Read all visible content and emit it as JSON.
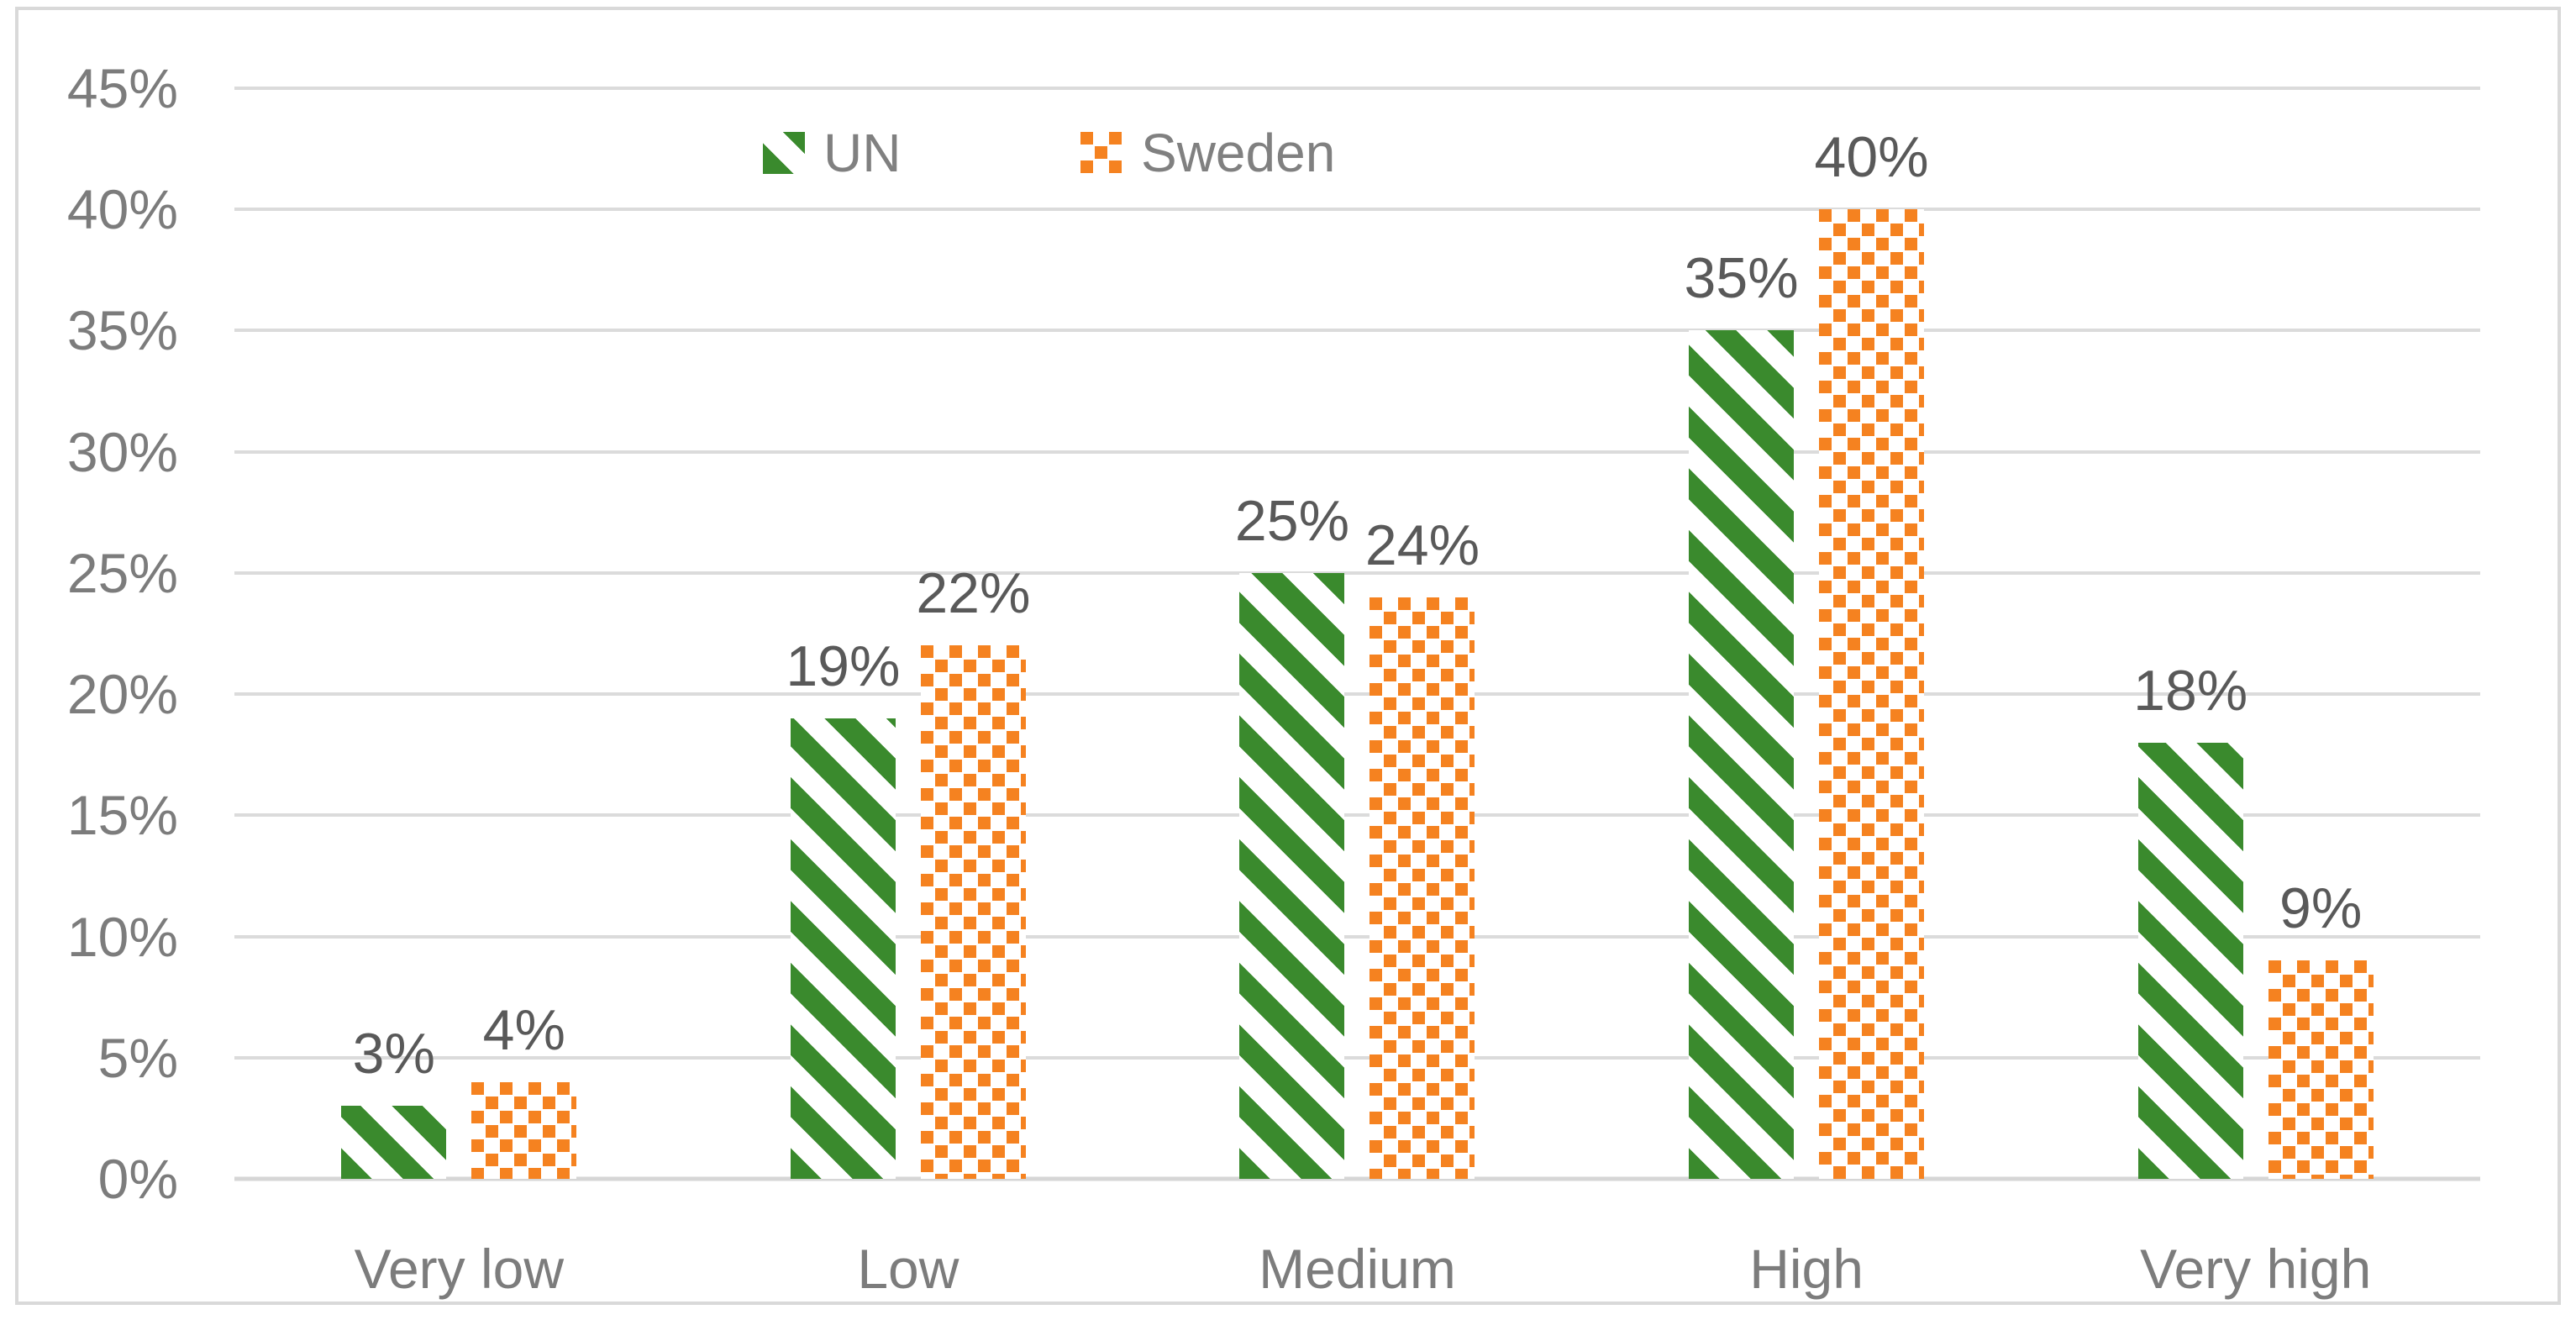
{
  "chart_data": {
    "type": "bar",
    "categories": [
      "Very low",
      "Low",
      "Medium",
      "High",
      "Very high"
    ],
    "series": [
      {
        "name": "UN",
        "values": [
          3,
          19,
          25,
          35,
          18
        ],
        "labels": [
          "3%",
          "19%",
          "25%",
          "35%",
          "18%"
        ],
        "color": "#3a8a2d",
        "pattern": "diagonal-stripes"
      },
      {
        "name": "Sweden",
        "values": [
          4,
          22,
          24,
          40,
          9
        ],
        "labels": [
          "4%",
          "22%",
          "24%",
          "40%",
          "9%"
        ],
        "color": "#f58220",
        "pattern": "dotted-squares"
      }
    ],
    "title": "",
    "xlabel": "",
    "ylabel": "",
    "ylim": [
      0,
      45
    ],
    "ytick_step": 5,
    "ytick_labels": [
      "0%",
      "5%",
      "10%",
      "15%",
      "20%",
      "25%",
      "30%",
      "35%",
      "40%",
      "45%"
    ],
    "grid": true,
    "legend_position": "top",
    "value_suffix": "%"
  },
  "legend": {
    "items": [
      {
        "label": "UN"
      },
      {
        "label": "Sweden"
      }
    ]
  },
  "colors": {
    "un_green": "#3a8a2d",
    "sweden_orange": "#f58220",
    "gridline": "#dbdbdb",
    "axis_text": "#7c7c7c",
    "data_label_text": "#595959",
    "frame_border": "#d9d9d9",
    "background": "#ffffff"
  }
}
